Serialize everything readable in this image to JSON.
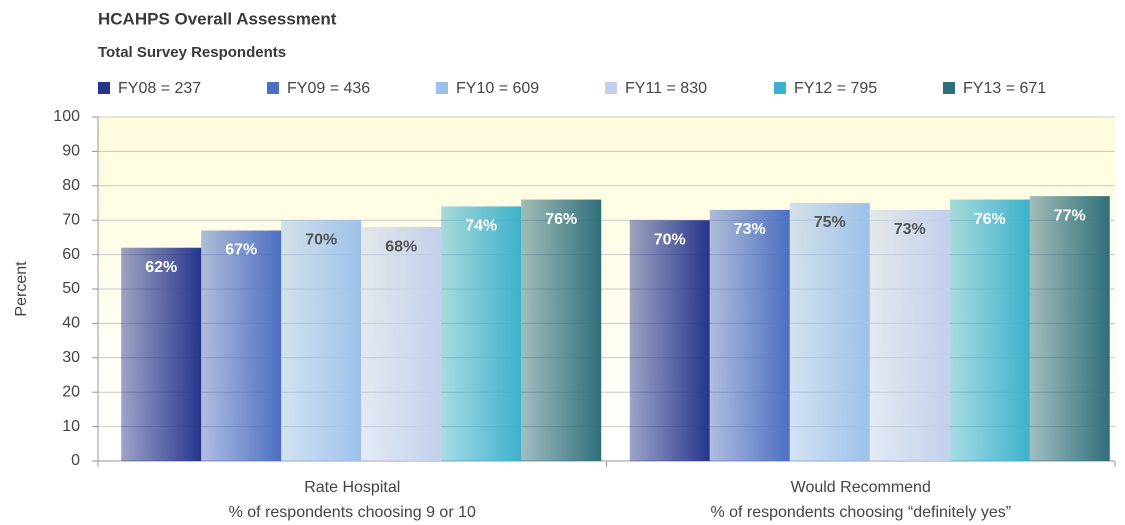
{
  "chart_data": {
    "type": "bar",
    "title": "HCAHPS Overall Assessment",
    "subtitle": "Total Survey Respondents",
    "y_label": "Percent",
    "categories": [
      "Rate Hospital",
      "Would Recommend"
    ],
    "category_notes": [
      "% of respondents choosing 9 or 10",
      "% of respondents choosing “definitely yes”"
    ],
    "series": [
      {
        "name": "FY08 = 237",
        "color": "#26358c",
        "label_color": "#ffffff",
        "values": [
          62,
          70
        ],
        "value_labels": [
          "62%",
          "70%"
        ]
      },
      {
        "name": "FY09 = 436",
        "color": "#4d6fc2",
        "label_color": "#ffffff",
        "values": [
          67,
          73
        ],
        "value_labels": [
          "67%",
          "73%"
        ]
      },
      {
        "name": "FY10 = 609",
        "color": "#9dc1ea",
        "label_color": "#555555",
        "values": [
          70,
          75
        ],
        "value_labels": [
          "70%",
          "75%"
        ]
      },
      {
        "name": "FY11 = 830",
        "color": "#c3d0ec",
        "label_color": "#555555",
        "values": [
          68,
          73
        ],
        "value_labels": [
          "68%",
          "73%"
        ]
      },
      {
        "name": "FY12 = 795",
        "color": "#3db1cb",
        "label_color": "#ffffff",
        "values": [
          74,
          76
        ],
        "value_labels": [
          "74%",
          "76%"
        ]
      },
      {
        "name": "FY13 = 671",
        "color": "#2f6f7b",
        "label_color": "#ffffff",
        "values": [
          76,
          77
        ],
        "value_labels": [
          "76%",
          "77%"
        ]
      }
    ],
    "ylim": [
      0,
      100
    ],
    "yticks": [
      0,
      10,
      20,
      30,
      40,
      50,
      60,
      70,
      80,
      90,
      100
    ],
    "grid": true
  }
}
